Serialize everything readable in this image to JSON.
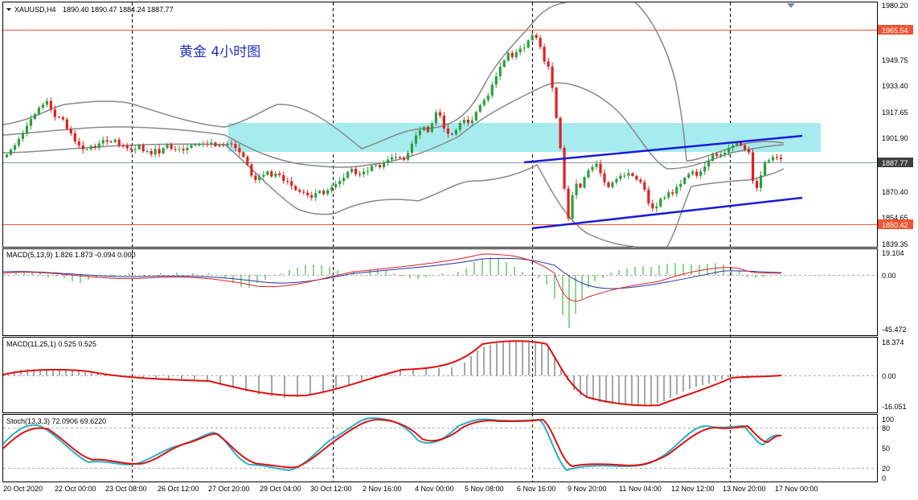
{
  "header": {
    "icon": "triangle-down-icon",
    "symbol": "XAUUSD,H4",
    "ohlc": "1890.40 1890.47 1884.24 1887.77"
  },
  "title": "黄金  4小时图",
  "price_axis": {
    "ticks": [
      "1980.20",
      "1965.54",
      "1949.75",
      "1933.40",
      "1917.65",
      "1901.90",
      "1887.77",
      "1870.40",
      "1854.65",
      "1850.42",
      "1839.35"
    ],
    "current_price": "1887.77",
    "resistance_label": "1965.54",
    "support_label": "1850.42",
    "colors": {
      "resistance": "#ee5533",
      "support": "#ee5533",
      "current": "#404040"
    }
  },
  "macd1": {
    "label": "MACD(5,13,9) 1.826 1.873 -0.094 0.000",
    "ticks": [
      "19.104",
      "0.00",
      "-45.472"
    ]
  },
  "macd2": {
    "label": "MACD(11,25,1) 0.525 0.525",
    "ticks": [
      "18.374",
      "0.00",
      "-16.051"
    ]
  },
  "stoch": {
    "label": "Stoch(13,3,3) 72.0906 69.6220",
    "ticks": [
      "100",
      "80",
      "50",
      "20",
      "0"
    ]
  },
  "time_axis": [
    "20 Oct 2020",
    "22 Oct 00:00",
    "23 Oct 08:00",
    "26 Oct 12:00",
    "27 Oct 20:00",
    "29 Oct 04:00",
    "30 Oct 12:00",
    "2 Nov 16:00",
    "4 Nov 00:00",
    "5 Nov 08:00",
    "6 Nov 16:00",
    "9 Nov 20:00",
    "11 Nov 04:00",
    "12 Nov 12:00",
    "13 Nov 20:00",
    "17 Nov 00:00"
  ],
  "chart_data": {
    "type": "candlestick",
    "price_ylim": [
      1835.0,
      1982.0
    ],
    "closes": [
      1890.4,
      1893.5,
      1896.0,
      1899.8,
      1903.3,
      1907.8,
      1911.9,
      1914.9,
      1918.6,
      1920.5,
      1922.7,
      1917.6,
      1913.1,
      1912.9,
      1911.6,
      1906.0,
      1903.2,
      1898.3,
      1896.0,
      1893.6,
      1893.6,
      1895.6,
      1894.5,
      1897.2,
      1899.2,
      1898.4,
      1898.0,
      1899.4,
      1895.8,
      1895.7,
      1894.2,
      1893.4,
      1893.7,
      1896.1,
      1892.5,
      1892.6,
      1890.6,
      1893.9,
      1891.1,
      1894.4,
      1896.5,
      1893.9,
      1893.5,
      1893.9,
      1893.0,
      1894.5,
      1896.2,
      1896.4,
      1896.4,
      1897.0,
      1896.8,
      1897.7,
      1895.5,
      1896.6,
      1896.0,
      1897.1,
      1896.8,
      1894.4,
      1891.8,
      1889.1,
      1884.5,
      1877.8,
      1875.1,
      1877.2,
      1878.3,
      1880.4,
      1877.3,
      1879.1,
      1878.1,
      1874.6,
      1874.4,
      1871.6,
      1869.2,
      1868.1,
      1867.5,
      1866.0,
      1864.6,
      1867.3,
      1868.7,
      1866.7,
      1869.0,
      1870.9,
      1872.7,
      1874.6,
      1876.5,
      1880.0,
      1881.9,
      1878.7,
      1878.6,
      1880.2,
      1880.6,
      1883.7,
      1884.2,
      1882.9,
      1885.4,
      1887.4,
      1888.8,
      1889.0,
      1888.4,
      1887.3,
      1891.5,
      1897.0,
      1902.0,
      1905.0,
      1907.2,
      1904.2,
      1909.3,
      1915.9,
      1913.9,
      1906.2,
      1903.0,
      1902.6,
      1905.3,
      1909.5,
      1911.4,
      1909.5,
      1911.0,
      1916.2,
      1920.2,
      1923.3,
      1926.0,
      1932.5,
      1937.6,
      1943.3,
      1947.1,
      1951.6,
      1949.1,
      1952.0,
      1954.2,
      1954.8,
      1959.2,
      1962.4,
      1960.7,
      1955.2,
      1946.5,
      1943.4,
      1930.6,
      1912.5,
      1894.4,
      1870.0,
      1852.0,
      1866.0,
      1873.0,
      1870.6,
      1876.8,
      1881.0,
      1883.0,
      1885.0,
      1879.2,
      1873.8,
      1870.9,
      1873.6,
      1875.8,
      1877.8,
      1877.8,
      1879.3,
      1877.6,
      1875.4,
      1873.9,
      1869.4,
      1861.1,
      1858.1,
      1859.2,
      1864.0,
      1864.7,
      1867.8,
      1866.9,
      1871.0,
      1872.8,
      1876.6,
      1878.8,
      1880.3,
      1877.7,
      1880.3,
      1883.3,
      1886.8,
      1891.0,
      1889.7,
      1890.6,
      1891.6,
      1894.5,
      1896.0,
      1897.6,
      1896.0,
      1893.6,
      1891.8,
      1874.5,
      1870.4,
      1878.0,
      1886.0,
      1887.0,
      1889.0,
      1888.6,
      1887.77
    ]
  }
}
